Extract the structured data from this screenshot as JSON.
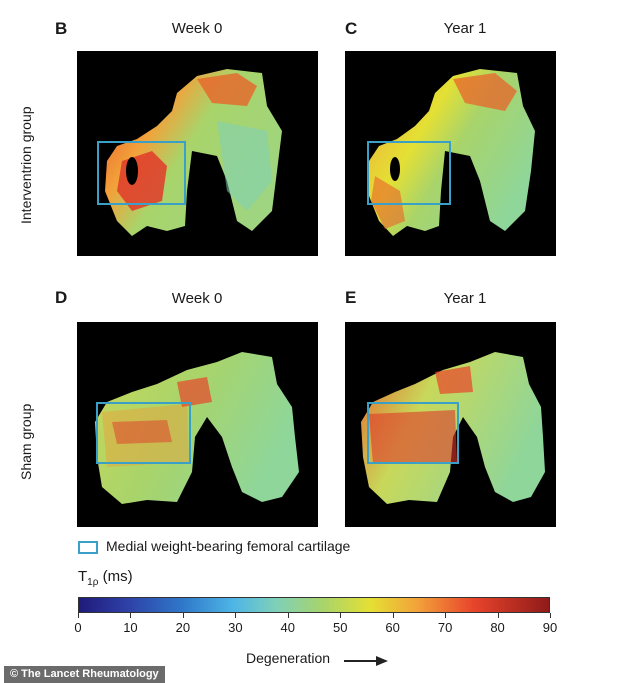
{
  "panels": [
    {
      "letter": "B",
      "title": "Week 0"
    },
    {
      "letter": "C",
      "title": "Year 1"
    },
    {
      "letter": "D",
      "title": "Week 0"
    },
    {
      "letter": "E",
      "title": "Year 1"
    }
  ],
  "row_labels": {
    "top": "Interventrion group",
    "bottom": "Sham group"
  },
  "legend": {
    "roi_label": "Medial weight-bearing femoral cartilage",
    "roi_color": "#3aa0c8"
  },
  "colorbar": {
    "title_main": "T",
    "title_sub": "1ρ",
    "title_unit": " (ms)",
    "ticks": [
      "0",
      "10",
      "20",
      "30",
      "40",
      "50",
      "60",
      "70",
      "80",
      "90"
    ],
    "range": [
      0,
      90
    ],
    "axis_label": "Degeneration"
  },
  "credit": "© The Lancet Rheumatology"
}
